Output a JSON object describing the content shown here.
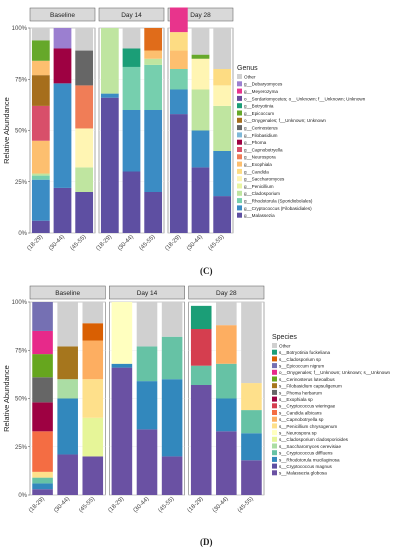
{
  "figures": [
    {
      "panel_label": "(C)",
      "legend_title": "Genus",
      "y_label": "Relative Abundance",
      "y_ticks": [
        "0%",
        "25%",
        "50%",
        "75%",
        "100%"
      ],
      "facets": [
        "Baseline",
        "Day 14",
        "Day 28"
      ],
      "x_ticks": [
        "(18-29)",
        "(30-44)",
        "(45-55)"
      ],
      "legend": [
        {
          "label": "Other",
          "color": "#d0d0d0"
        },
        {
          "label": "g__Debaryomyces",
          "color": "#9b7fd0"
        },
        {
          "label": "g__Meyerozyma",
          "color": "#e8348c"
        },
        {
          "label": "o__Sordariomycetes; o__Unknown; f__Unknown; Unknown",
          "color": "#6b4c9a"
        },
        {
          "label": "g__Botryotinia",
          "color": "#1b9e77"
        },
        {
          "label": "g__Epicoccum",
          "color": "#66a82a"
        },
        {
          "label": "o__Onygenales; f__Unknown; Unknown",
          "color": "#a66e1c"
        },
        {
          "label": "g__Cerinosterus",
          "color": "#666666"
        },
        {
          "label": "g__Filobasidium",
          "color": "#7fb8d8"
        },
        {
          "label": "g__Phoma",
          "color": "#9e0142"
        },
        {
          "label": "g__Capnobotryella",
          "color": "#d84f6a"
        },
        {
          "label": "g__Neurospora",
          "color": "#f07d57"
        },
        {
          "label": "g__Exophiala",
          "color": "#fdbf6f"
        },
        {
          "label": "g__Candida",
          "color": "#fddc83"
        },
        {
          "label": "g__Saccharomyces",
          "color": "#fff5b3"
        },
        {
          "label": "g__Penicillium",
          "color": "#e8f5a2"
        },
        {
          "label": "g__Cladosporium",
          "color": "#bfe5a0"
        },
        {
          "label": "g__Rhodotorula (Sporidiobolales)",
          "color": "#76cfae"
        },
        {
          "label": "g__Cryptococcus (Filobasidiales)",
          "color": "#3b8cc4"
        },
        {
          "label": "g__Malassezia",
          "color": "#5e4fa2"
        }
      ]
    },
    {
      "panel_label": "(D)",
      "legend_title": "Species",
      "y_label": "Relative Abundance",
      "y_ticks": [
        "0%",
        "25%",
        "50%",
        "75%",
        "100%"
      ],
      "facets": [
        "Baseline",
        "Day 14",
        "Day 28"
      ],
      "x_ticks": [
        "(18-29)",
        "(30-44)",
        "(45-55)"
      ],
      "legend": [
        {
          "label": "Other",
          "color": "#d0d0d0"
        },
        {
          "label": "s__Botryotinia fuckeliana",
          "color": "#1b9e77"
        },
        {
          "label": "s__Cladosporium sp",
          "color": "#d95f02"
        },
        {
          "label": "s__Epicoccum nigrum",
          "color": "#7570b3"
        },
        {
          "label": "o__Onygenales; f__Unknown; Unknown; s__Unknown",
          "color": "#e7298a"
        },
        {
          "label": "s__Cerinosterus luteoalbus",
          "color": "#66a61e"
        },
        {
          "label": "s__Filobasidium capsuligenum",
          "color": "#a6761d"
        },
        {
          "label": "s__Phoma herbarum",
          "color": "#666666"
        },
        {
          "label": "s__Exophiala sp",
          "color": "#9e0142"
        },
        {
          "label": "s__Cryptococcus wieringae",
          "color": "#d53e4f"
        },
        {
          "label": "s__Candida albicans",
          "color": "#f46d43"
        },
        {
          "label": "s__Capnobotryella sp",
          "color": "#fdae61"
        },
        {
          "label": "s__Penicillium chrysogenum",
          "color": "#fee08b"
        },
        {
          "label": "s__Neurospora sp",
          "color": "#ffffbf"
        },
        {
          "label": "s__Cladosporium cladosporioides",
          "color": "#e6f598"
        },
        {
          "label": "s__Saccharomyces cerevisiae",
          "color": "#abdda4"
        },
        {
          "label": "s__Cryptococcus diffluens",
          "color": "#66c2a5"
        },
        {
          "label": "s__Rhodotorula mucilaginosa",
          "color": "#3288bd"
        },
        {
          "label": "s__Cryptococcus magnus",
          "color": "#5e4fa2"
        },
        {
          "label": "s__Malassezia globosa",
          "color": "#6a51a3"
        }
      ]
    }
  ],
  "chart_data": [
    {
      "type": "bar",
      "stacked": true,
      "facets": [
        "Baseline",
        "Day 14",
        "Day 28"
      ],
      "categories": [
        "(18-29)",
        "(30-44)",
        "(45-55)"
      ],
      "ylabel": "Relative Abundance",
      "ylim": [
        0,
        1
      ],
      "legend_position": "right",
      "bars": [
        {
          "facet": "Baseline",
          "x": "(18-29)",
          "segments": [
            {
              "series": "g__Malassezia",
              "value": 0.06
            },
            {
              "series": "g__Cryptococcus (Filobasidiales)",
              "value": 0.2
            },
            {
              "series": "g__Rhodotorula (Sporidiobolales)",
              "value": 0.02
            },
            {
              "series": "g__Cladosporium",
              "value": 0.01
            },
            {
              "series": "g__Exophiala",
              "value": 0.16
            },
            {
              "series": "g__Capnobotryella",
              "value": 0.17
            },
            {
              "series": "g__Onygenales",
              "value": 0.15
            },
            {
              "series": "g__Exophiala",
              "value": 0.07
            },
            {
              "series": "g__Epicoccum",
              "value": 0.1
            },
            {
              "series": "Other",
              "value": 0.06
            }
          ]
        },
        {
          "facet": "Baseline",
          "x": "(30-44)",
          "segments": [
            {
              "series": "g__Malassezia",
              "value": 0.22
            },
            {
              "series": "g__Cryptococcus (Filobasidiales)",
              "value": 0.51
            },
            {
              "series": "g__Phoma",
              "value": 0.17
            },
            {
              "series": "g__Debaryomyces",
              "value": 0.1
            }
          ]
        },
        {
          "facet": "Baseline",
          "x": "(45-55)",
          "segments": [
            {
              "series": "g__Malassezia",
              "value": 0.2
            },
            {
              "series": "g__Cladosporium",
              "value": 0.12
            },
            {
              "series": "g__Saccharomyces",
              "value": 0.19
            },
            {
              "series": "g__Neurospora",
              "value": 0.21
            },
            {
              "series": "g__Cerinosterus",
              "value": 0.17
            },
            {
              "series": "Other",
              "value": 0.11
            }
          ]
        },
        {
          "facet": "Day 14",
          "x": "(18-29)",
          "segments": [
            {
              "series": "g__Malassezia",
              "value": 0.66
            },
            {
              "series": "g__Cryptococcus (Filobasidiales)",
              "value": 0.02
            },
            {
              "series": "g__Cladosporium",
              "value": 0.32
            }
          ]
        },
        {
          "facet": "Day 14",
          "x": "(30-44)",
          "segments": [
            {
              "series": "g__Malassezia",
              "value": 0.3
            },
            {
              "series": "g__Cryptococcus (Filobasidiales)",
              "value": 0.3
            },
            {
              "series": "g__Rhodotorula (Sporidiobolales)",
              "value": 0.21
            },
            {
              "series": "g__Botryotinia",
              "value": 0.09
            },
            {
              "series": "Other",
              "value": 0.1
            }
          ]
        },
        {
          "facet": "Day 14",
          "x": "(45-55)",
          "segments": [
            {
              "series": "g__Malassezia",
              "value": 0.2
            },
            {
              "series": "g__Cryptococcus (Filobasidiales)",
              "value": 0.4
            },
            {
              "series": "g__Rhodotorula (Sporidiobolales)",
              "value": 0.22
            },
            {
              "series": "g__Cladosporium",
              "value": 0.03
            },
            {
              "series": "g__Exophiala",
              "value": 0.04
            },
            {
              "series": "g__Cladosporium sp",
              "value": 0.11
            }
          ]
        },
        {
          "facet": "Day 28",
          "x": "(18-29)",
          "segments": [
            {
              "series": "g__Malassezia",
              "value": 0.58
            },
            {
              "series": "g__Cryptococcus (Filobasidiales)",
              "value": 0.12
            },
            {
              "series": "g__Rhodotorula (Sporidiobolales)",
              "value": 0.1
            },
            {
              "series": "g__Exophiala",
              "value": 0.09
            },
            {
              "series": "g__Candida",
              "value": 0.09
            },
            {
              "series": "g__Meyerozyma",
              "value": 0.12
            }
          ]
        },
        {
          "facet": "Day 28",
          "x": "(30-44)",
          "segments": [
            {
              "series": "g__Malassezia",
              "value": 0.32
            },
            {
              "series": "g__Cryptococcus (Filobasidiales)",
              "value": 0.18
            },
            {
              "series": "g__Cladosporium",
              "value": 0.2
            },
            {
              "series": "g__Saccharomyces",
              "value": 0.15
            },
            {
              "series": "g__Epicoccum",
              "value": 0.02
            },
            {
              "series": "Other",
              "value": 0.13
            }
          ]
        },
        {
          "facet": "Day 28",
          "x": "(45-55)",
          "segments": [
            {
              "series": "g__Malassezia",
              "value": 0.18
            },
            {
              "series": "g__Cryptococcus (Filobasidiales)",
              "value": 0.22
            },
            {
              "series": "g__Cladosporium",
              "value": 0.22
            },
            {
              "series": "g__Saccharomyces",
              "value": 0.1
            },
            {
              "series": "g__Candida",
              "value": 0.08
            },
            {
              "series": "Other",
              "value": 0.2
            }
          ]
        }
      ]
    },
    {
      "type": "bar",
      "stacked": true,
      "facets": [
        "Baseline",
        "Day 14",
        "Day 28"
      ],
      "categories": [
        "(18-29)",
        "(30-44)",
        "(45-55)"
      ],
      "ylabel": "Relative Abundance",
      "ylim": [
        0,
        1
      ],
      "legend_position": "right",
      "bars": [
        {
          "facet": "Baseline",
          "x": "(18-29)",
          "segments": [
            {
              "series": "s__Malassezia globosa",
              "value": 0.03
            },
            {
              "series": "s__Rhodotorula mucilaginosa",
              "value": 0.03
            },
            {
              "series": "s__Cryptococcus diffluens",
              "value": 0.03
            },
            {
              "series": "s__Penicillium chrysogenum",
              "value": 0.03
            },
            {
              "series": "s__Candida albicans",
              "value": 0.21
            },
            {
              "series": "s__Exophiala sp",
              "value": 0.15
            },
            {
              "series": "s__Phoma herbarum",
              "value": 0.13
            },
            {
              "series": "s__Cerinosterus luteoalbus",
              "value": 0.12
            },
            {
              "series": "o__Onygenales; f__Unknown; Unknown; s__Unknown",
              "value": 0.12
            },
            {
              "series": "s__Epicoccum nigrum",
              "value": 0.15
            }
          ]
        },
        {
          "facet": "Baseline",
          "x": "(30-44)",
          "segments": [
            {
              "series": "s__Malassezia globosa",
              "value": 0.21
            },
            {
              "series": "s__Rhodotorula mucilaginosa",
              "value": 0.29
            },
            {
              "series": "s__Saccharomyces cerevisiae",
              "value": 0.1
            },
            {
              "series": "s__Filobasidium capsuligenum",
              "value": 0.17
            },
            {
              "series": "Other",
              "value": 0.23
            }
          ]
        },
        {
          "facet": "Baseline",
          "x": "(45-55)",
          "segments": [
            {
              "series": "s__Malassezia globosa",
              "value": 0.2
            },
            {
              "series": "s__Cladosporium cladosporioides",
              "value": 0.2
            },
            {
              "series": "s__Penicillium chrysogenum",
              "value": 0.2
            },
            {
              "series": "s__Capnobotryella sp",
              "value": 0.2
            },
            {
              "series": "s__Cladosporium sp",
              "value": 0.09
            },
            {
              "series": "Other",
              "value": 0.11
            }
          ]
        },
        {
          "facet": "Day 14",
          "x": "(18-29)",
          "segments": [
            {
              "series": "s__Malassezia globosa",
              "value": 0.66
            },
            {
              "series": "s__Rhodotorula mucilaginosa",
              "value": 0.02
            },
            {
              "series": "s__Neurospora sp",
              "value": 0.32
            }
          ]
        },
        {
          "facet": "Day 14",
          "x": "(30-44)",
          "segments": [
            {
              "series": "s__Malassezia globosa",
              "value": 0.34
            },
            {
              "series": "s__Rhodotorula mucilaginosa",
              "value": 0.25
            },
            {
              "series": "s__Cryptococcus diffluens",
              "value": 0.18
            },
            {
              "series": "Other",
              "value": 0.23
            }
          ]
        },
        {
          "facet": "Day 14",
          "x": "(45-55)",
          "segments": [
            {
              "series": "s__Malassezia globosa",
              "value": 0.2
            },
            {
              "series": "s__Rhodotorula mucilaginosa",
              "value": 0.4
            },
            {
              "series": "s__Cryptococcus diffluens",
              "value": 0.22
            },
            {
              "series": "Other",
              "value": 0.18
            }
          ]
        },
        {
          "facet": "Day 28",
          "x": "(18-29)",
          "segments": [
            {
              "series": "s__Malassezia globosa",
              "value": 0.57
            },
            {
              "series": "s__Cryptococcus diffluens",
              "value": 0.1
            },
            {
              "series": "s__Cryptococcus wieringae",
              "value": 0.19
            },
            {
              "series": "s__Botryotinia fuckeliana",
              "value": 0.12
            }
          ]
        },
        {
          "facet": "Day 28",
          "x": "(30-44)",
          "segments": [
            {
              "series": "s__Malassezia globosa",
              "value": 0.33
            },
            {
              "series": "s__Rhodotorula mucilaginosa",
              "value": 0.17
            },
            {
              "series": "s__Cryptococcus diffluens",
              "value": 0.18
            },
            {
              "series": "s__Capnobotryella sp",
              "value": 0.2
            },
            {
              "series": "Other",
              "value": 0.12
            }
          ]
        },
        {
          "facet": "Day 28",
          "x": "(45-55)",
          "segments": [
            {
              "series": "s__Malassezia globosa",
              "value": 0.18
            },
            {
              "series": "s__Rhodotorula mucilaginosa",
              "value": 0.14
            },
            {
              "series": "s__Cryptococcus diffluens",
              "value": 0.12
            },
            {
              "series": "s__Penicillium chrysogenum",
              "value": 0.14
            },
            {
              "series": "Other",
              "value": 0.42
            }
          ]
        }
      ]
    }
  ]
}
